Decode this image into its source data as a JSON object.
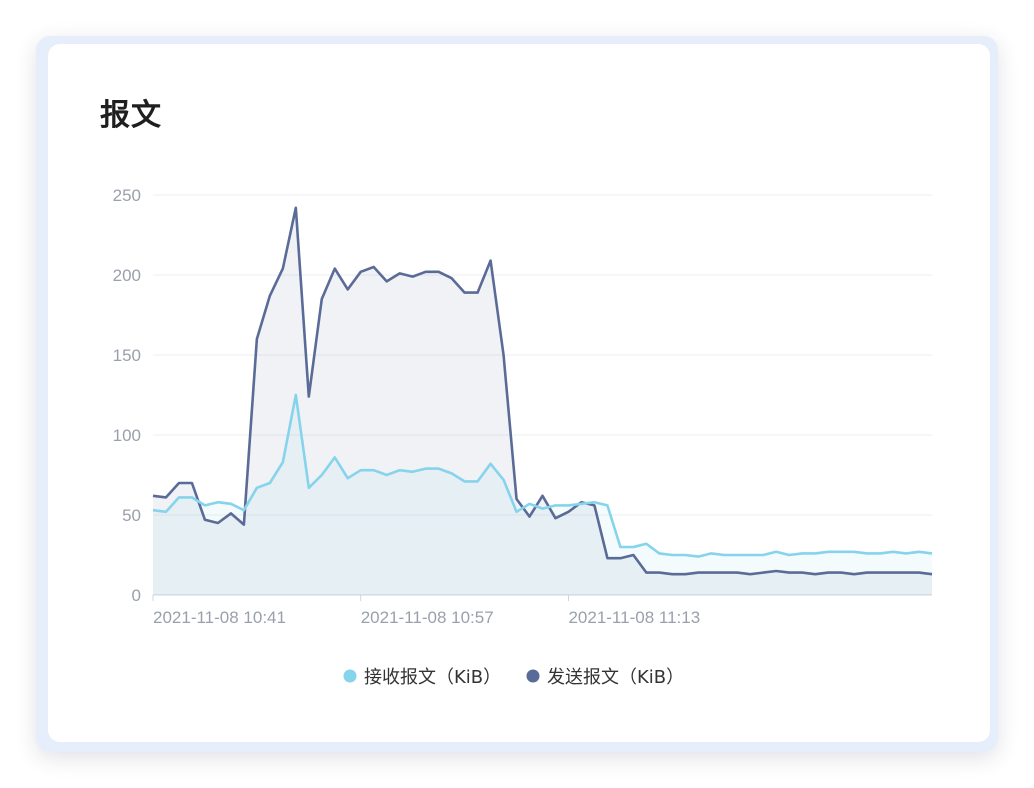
{
  "card": {
    "title": "报文"
  },
  "chart_data": {
    "type": "area",
    "x_tick_labels": [
      "2021-11-08 10:41",
      "2021-11-08 10:57",
      "2021-11-08 11:13"
    ],
    "x_tick_indices": [
      0,
      16,
      32
    ],
    "ylim": [
      0,
      250
    ],
    "y_ticks": [
      0,
      50,
      100,
      150,
      200,
      250
    ],
    "grid": true,
    "legend_position": "bottom-center",
    "series": [
      {
        "name": "接收报文（KiB）",
        "color": "#86d3ec",
        "values": [
          53,
          52,
          61,
          61,
          56,
          58,
          57,
          53,
          67,
          70,
          83,
          125,
          67,
          75,
          86,
          73,
          78,
          78,
          75,
          78,
          77,
          79,
          79,
          76,
          71,
          71,
          82,
          72,
          52,
          57,
          54,
          56,
          56,
          57,
          58,
          56,
          30,
          30,
          32,
          26,
          25,
          25,
          24,
          26,
          25,
          25,
          25,
          25,
          27,
          25,
          26,
          26,
          27,
          27,
          27,
          26,
          26,
          27,
          26,
          27,
          26
        ]
      },
      {
        "name": "发送报文（KiB）",
        "color": "#5b6b97",
        "values": [
          62,
          61,
          70,
          70,
          47,
          45,
          51,
          44,
          160,
          187,
          204,
          242,
          124,
          185,
          204,
          191,
          202,
          205,
          196,
          201,
          199,
          202,
          202,
          198,
          189,
          189,
          209,
          150,
          60,
          49,
          62,
          48,
          52,
          58,
          56,
          23,
          23,
          25,
          14,
          14,
          13,
          13,
          14,
          14,
          14,
          14,
          13,
          14,
          15,
          14,
          14,
          13,
          14,
          14,
          13,
          14,
          14,
          14,
          14,
          14,
          13
        ]
      }
    ]
  }
}
